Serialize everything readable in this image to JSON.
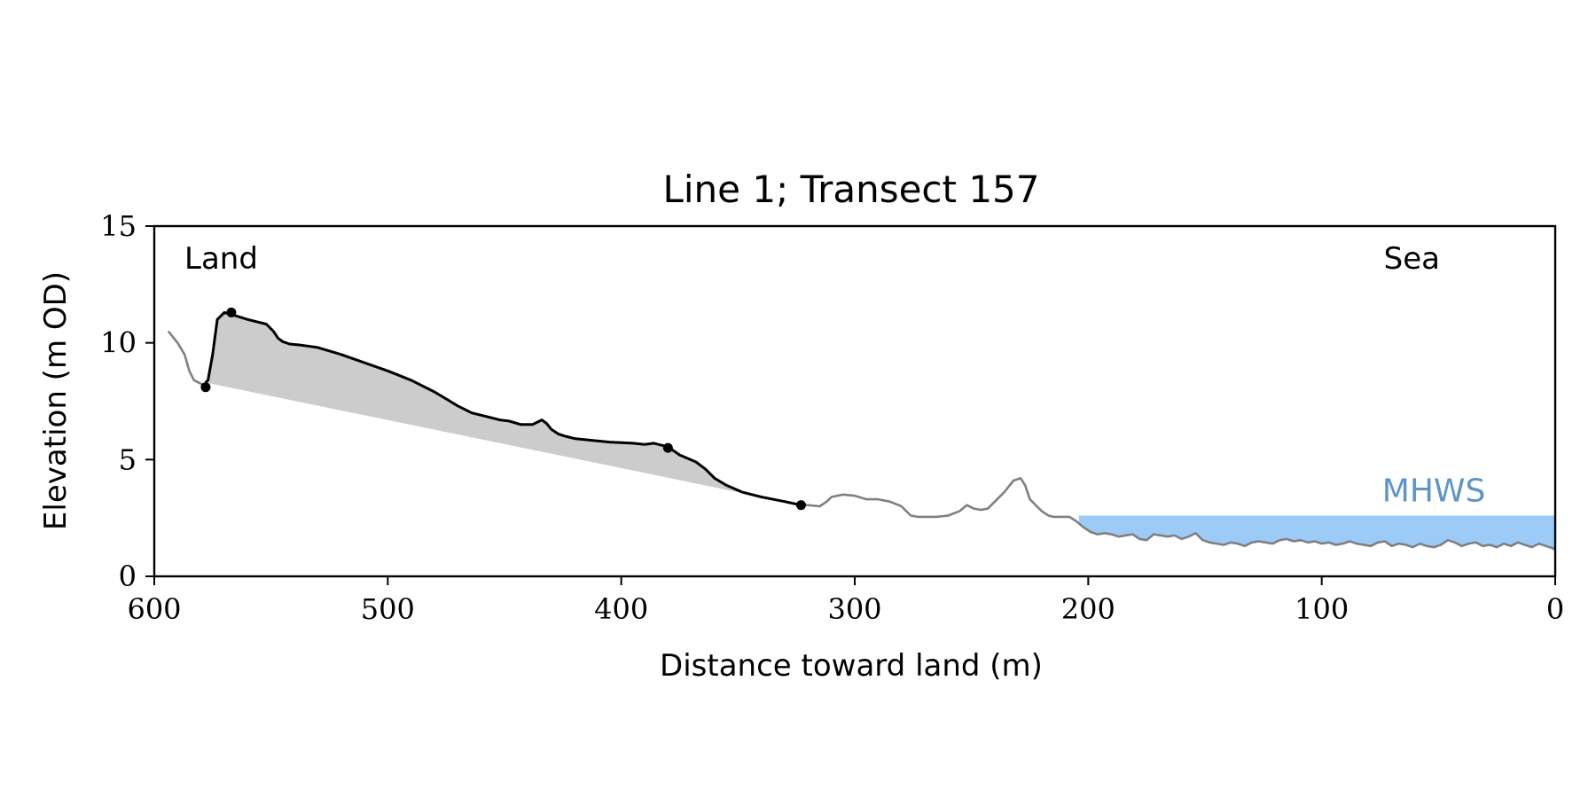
{
  "chart_data": {
    "type": "line",
    "title": "Line 1; Transect 157",
    "xlabel": "Distance toward land (m)",
    "ylabel": "Elevation (m OD)",
    "xlim": [
      600,
      0
    ],
    "ylim": [
      0,
      15
    ],
    "x_ticks": [
      600,
      500,
      400,
      300,
      200,
      100,
      0
    ],
    "y_ticks": [
      0,
      5,
      10,
      15
    ],
    "grid": false,
    "annotations": {
      "land": "Land",
      "sea": "Sea"
    },
    "mhws": {
      "label": "MHWS",
      "elevation": 2.6,
      "x_start": 204,
      "x_end": 0,
      "color": "#9ccbf8",
      "label_color": "#5d95c9"
    },
    "profile": {
      "color": "#808080",
      "x": [
        594,
        590,
        587,
        585,
        583,
        581,
        579,
        577,
        575,
        573,
        570,
        568,
        560,
        552,
        549,
        547,
        545,
        542,
        537,
        530,
        520,
        510,
        500,
        490,
        480,
        470,
        464,
        458,
        452,
        448,
        443,
        438,
        434,
        432,
        430,
        427,
        424,
        420,
        415,
        405,
        395,
        390,
        386,
        380,
        375,
        368,
        364,
        360,
        355,
        348,
        340,
        330,
        323,
        320,
        315,
        312,
        310,
        305,
        300,
        295,
        290,
        285,
        280,
        276,
        273,
        270,
        265,
        260,
        255,
        252,
        249,
        246,
        243,
        240,
        236,
        232,
        229,
        227,
        225,
        222,
        220,
        217,
        215,
        212,
        208,
        205,
        202,
        199,
        196,
        193,
        190,
        187,
        184,
        181,
        178,
        175,
        172,
        169,
        166,
        163,
        160,
        157,
        154,
        151,
        148,
        145,
        142,
        139,
        136,
        133,
        130,
        127,
        124,
        121,
        118,
        115,
        112,
        109,
        106,
        103,
        100,
        97,
        94,
        91,
        88,
        85,
        82,
        79,
        76,
        73,
        70,
        67,
        64,
        61,
        58,
        55,
        52,
        49,
        46,
        43,
        40,
        37,
        34,
        31,
        28,
        25,
        22,
        19,
        16,
        13,
        10,
        7,
        4,
        1,
        0
      ],
      "y": [
        10.5,
        10.0,
        9.5,
        8.8,
        8.4,
        8.3,
        8.2,
        8.4,
        9.5,
        11.0,
        11.3,
        11.25,
        11.0,
        10.8,
        10.5,
        10.2,
        10.05,
        9.95,
        9.9,
        9.8,
        9.5,
        9.15,
        8.8,
        8.4,
        7.9,
        7.3,
        7.0,
        6.85,
        6.7,
        6.65,
        6.5,
        6.5,
        6.7,
        6.55,
        6.3,
        6.1,
        6.0,
        5.9,
        5.85,
        5.75,
        5.7,
        5.65,
        5.7,
        5.55,
        5.2,
        4.9,
        4.6,
        4.2,
        3.9,
        3.6,
        3.4,
        3.2,
        3.05,
        3.05,
        3.0,
        3.2,
        3.4,
        3.5,
        3.45,
        3.3,
        3.3,
        3.2,
        3.0,
        2.6,
        2.55,
        2.55,
        2.55,
        2.6,
        2.8,
        3.05,
        2.9,
        2.85,
        2.9,
        3.2,
        3.6,
        4.1,
        4.2,
        3.9,
        3.3,
        3.0,
        2.8,
        2.6,
        2.55,
        2.55,
        2.55,
        2.35,
        2.1,
        1.9,
        1.8,
        1.85,
        1.8,
        1.7,
        1.75,
        1.8,
        1.6,
        1.55,
        1.8,
        1.75,
        1.7,
        1.75,
        1.6,
        1.7,
        1.85,
        1.55,
        1.45,
        1.4,
        1.35,
        1.45,
        1.4,
        1.3,
        1.45,
        1.5,
        1.45,
        1.4,
        1.55,
        1.6,
        1.5,
        1.55,
        1.45,
        1.5,
        1.4,
        1.45,
        1.35,
        1.4,
        1.5,
        1.4,
        1.35,
        1.3,
        1.45,
        1.5,
        1.3,
        1.4,
        1.35,
        1.25,
        1.4,
        1.3,
        1.25,
        1.35,
        1.55,
        1.45,
        1.3,
        1.4,
        1.45,
        1.3,
        1.35,
        1.25,
        1.4,
        1.3,
        1.45,
        1.35,
        1.25,
        1.4,
        1.3,
        1.2,
        1.15
      ]
    },
    "dune_segment": {
      "color": "#000000",
      "x_start": 578,
      "x_end": 323,
      "points": [
        {
          "x": 578,
          "y": 8.1
        },
        {
          "x": 567,
          "y": 11.3
        },
        {
          "x": 380,
          "y": 5.5
        },
        {
          "x": 323,
          "y": 3.05
        }
      ],
      "fill_color": "#cccccc"
    }
  }
}
